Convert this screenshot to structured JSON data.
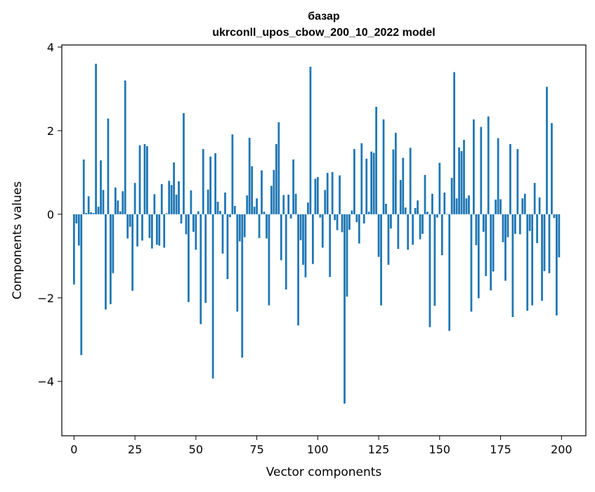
{
  "chart_data": {
    "type": "bar",
    "title": "базар",
    "subtitle": "ukrconll_upos_cbow_200_10_2022 model",
    "xlabel": "Vector components",
    "ylabel": "Components values",
    "xlim": [
      -5,
      210
    ],
    "ylim": [
      -5.3,
      4.05
    ],
    "xticks": [
      0,
      25,
      50,
      75,
      100,
      125,
      150,
      175,
      200
    ],
    "yticks": [
      -4,
      -2,
      0,
      2,
      4
    ],
    "ytick_labels": [
      "−4",
      "−2",
      "0",
      "2",
      "4"
    ],
    "grid": false,
    "bar_color": "#1f77b4",
    "series": [
      {
        "values": [
          -1.68,
          -0.22,
          -0.75,
          -3.37,
          1.31,
          0.03,
          0.43,
          0.05,
          0.03,
          3.6,
          0.18,
          1.29,
          0.58,
          -2.28,
          2.29,
          -2.15,
          -1.41,
          0.64,
          0.33,
          0.07,
          0.55,
          3.2,
          -0.58,
          -0.3,
          -1.83,
          0.75,
          -0.77,
          1.65,
          -0.63,
          1.68,
          1.63,
          -0.57,
          -0.82,
          0.48,
          -0.73,
          -0.75,
          0.72,
          -0.8,
          0.02,
          0.8,
          0.7,
          1.24,
          0.47,
          0.79,
          -0.22,
          2.42,
          -0.48,
          -2.1,
          0.57,
          -0.42,
          -0.85,
          0.07,
          -2.63,
          1.56,
          -2.12,
          0.59,
          1.38,
          -3.93,
          1.46,
          0.3,
          0.08,
          -0.94,
          0.52,
          -1.55,
          -0.07,
          1.91,
          0.2,
          -2.33,
          -0.65,
          -3.43,
          -0.55,
          0.45,
          1.83,
          1.15,
          0.18,
          0.38,
          -0.57,
          1.05,
          0.06,
          -0.58,
          -2.18,
          0.68,
          1.06,
          1.68,
          2.2,
          -1.1,
          0.46,
          -1.8,
          0.47,
          -0.1,
          1.31,
          0.49,
          -2.66,
          -0.62,
          -1.21,
          -1.51,
          0.28,
          3.53,
          -1.19,
          0.85,
          0.89,
          -0.08,
          -0.8,
          0.58,
          0.99,
          -1.5,
          1.01,
          -0.14,
          -0.38,
          0.93,
          -0.43,
          -4.53,
          -1.97,
          -0.37,
          0.09,
          1.56,
          -0.19,
          -0.7,
          1.7,
          -0.22,
          1.33,
          0.06,
          1.5,
          1.47,
          2.57,
          -1.02,
          -2.18,
          2.27,
          0.25,
          -1.21,
          -0.34,
          1.55,
          1.95,
          -0.83,
          0.82,
          1.35,
          0.16,
          -0.85,
          1.59,
          -0.73,
          0.15,
          0.33,
          -0.6,
          -0.47,
          0.94,
          0.06,
          -2.7,
          0.49,
          -2.19,
          -0.08,
          1.23,
          -0.98,
          0.52,
          0.01,
          -2.79,
          0.87,
          3.4,
          0.38,
          1.6,
          1.51,
          1.78,
          0.38,
          0.45,
          -2.33,
          2.27,
          -0.74,
          -2.01,
          2.09,
          -0.42,
          -1.48,
          2.34,
          -1.82,
          -1.37,
          0.35,
          1.82,
          0.36,
          -0.67,
          -1.59,
          -0.55,
          1.68,
          -2.46,
          -0.47,
          1.56,
          -0.48,
          0.38,
          0.49,
          -2.31,
          -0.4,
          -2.18,
          0.75,
          -0.69,
          0.4,
          -2.07,
          -1.36,
          3.05,
          -1.41,
          2.18,
          -0.09,
          -2.42,
          -1.03
        ]
      }
    ]
  }
}
